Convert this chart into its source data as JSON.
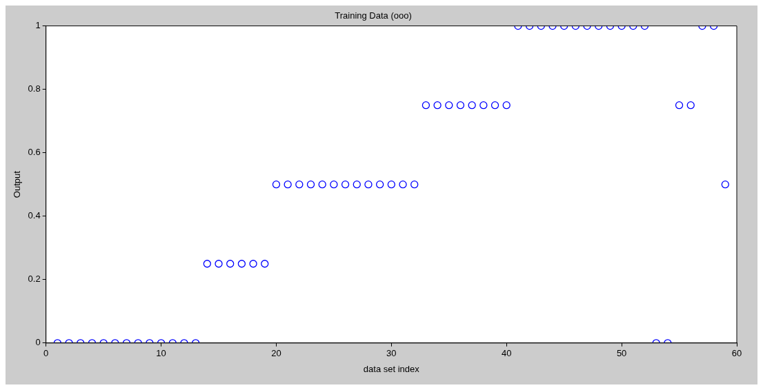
{
  "chart_data": {
    "type": "scatter",
    "title": "Training Data (ooo)",
    "xlabel": "data set index",
    "ylabel": "Output",
    "x": [
      1,
      2,
      3,
      4,
      5,
      6,
      7,
      8,
      9,
      10,
      11,
      12,
      13,
      14,
      15,
      16,
      17,
      18,
      19,
      20,
      21,
      22,
      23,
      24,
      25,
      26,
      27,
      28,
      29,
      30,
      31,
      32,
      33,
      34,
      35,
      36,
      37,
      38,
      39,
      40,
      41,
      42,
      43,
      44,
      45,
      46,
      47,
      48,
      49,
      50,
      51,
      52,
      53,
      54,
      55,
      56,
      57,
      58,
      59
    ],
    "values": [
      0,
      0,
      0,
      0,
      0,
      0,
      0,
      0,
      0,
      0,
      0,
      0,
      0,
      0.25,
      0.25,
      0.25,
      0.25,
      0.25,
      0.25,
      0.5,
      0.5,
      0.5,
      0.5,
      0.5,
      0.5,
      0.5,
      0.5,
      0.5,
      0.5,
      0.5,
      0.5,
      0.5,
      0.75,
      0.75,
      0.75,
      0.75,
      0.75,
      0.75,
      0.75,
      0.75,
      1,
      1,
      1,
      1,
      1,
      1,
      1,
      1,
      1,
      1,
      1,
      1,
      0,
      0,
      0.75,
      0.75,
      1,
      1,
      0.5
    ],
    "color": "#0000ff",
    "marker": "circle",
    "grid": false,
    "legend": false,
    "xlim": [
      0,
      60
    ],
    "xticks": [
      0,
      10,
      20,
      30,
      40,
      50,
      60
    ],
    "ylim": [
      0,
      1
    ],
    "yticks": [
      0,
      0.2,
      0.4,
      0.6,
      0.8,
      1
    ]
  }
}
